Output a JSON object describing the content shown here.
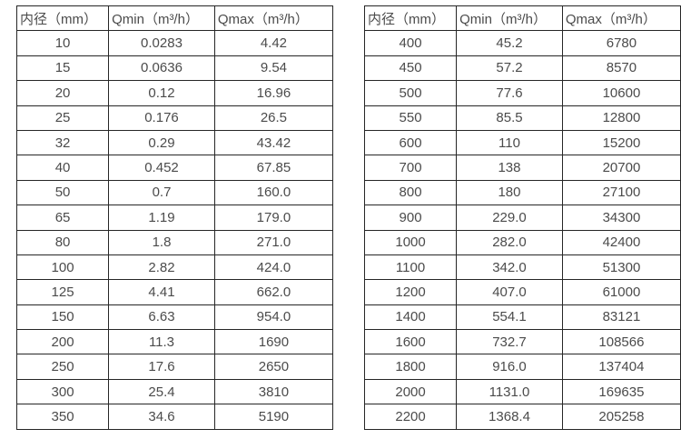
{
  "tables": [
    {
      "name": "flow-table-small-diameters",
      "headers": [
        "内径（mm）",
        "Qmin（m³/h）",
        "Qmax（m³/h）"
      ],
      "rows": [
        [
          "10",
          "0.0283",
          "4.42"
        ],
        [
          "15",
          "0.0636",
          "9.54"
        ],
        [
          "20",
          "0.12",
          "16.96"
        ],
        [
          "25",
          "0.176",
          "26.5"
        ],
        [
          "32",
          "0.29",
          "43.42"
        ],
        [
          "40",
          "0.452",
          "67.85"
        ],
        [
          "50",
          "0.7",
          "160.0"
        ],
        [
          "65",
          "1.19",
          "179.0"
        ],
        [
          "80",
          "1.8",
          "271.0"
        ],
        [
          "100",
          "2.82",
          "424.0"
        ],
        [
          "125",
          "4.41",
          "662.0"
        ],
        [
          "150",
          "6.63",
          "954.0"
        ],
        [
          "200",
          "11.3",
          "1690"
        ],
        [
          "250",
          "17.6",
          "2650"
        ],
        [
          "300",
          "25.4",
          "3810"
        ],
        [
          "350",
          "34.6",
          "5190"
        ]
      ]
    },
    {
      "name": "flow-table-large-diameters",
      "headers": [
        "内径（mm）",
        "Qmin（m³/h）",
        "Qmax（m³/h）"
      ],
      "rows": [
        [
          "400",
          "45.2",
          "6780"
        ],
        [
          "450",
          "57.2",
          "8570"
        ],
        [
          "500",
          "77.6",
          "10600"
        ],
        [
          "550",
          "85.5",
          "12800"
        ],
        [
          "600",
          "110",
          "15200"
        ],
        [
          "700",
          "138",
          "20700"
        ],
        [
          "800",
          "180",
          "27100"
        ],
        [
          "900",
          "229.0",
          "34300"
        ],
        [
          "1000",
          "282.0",
          "42400"
        ],
        [
          "1100",
          "342.0",
          "51300"
        ],
        [
          "1200",
          "407.0",
          "61000"
        ],
        [
          "1400",
          "554.1",
          "83121"
        ],
        [
          "1600",
          "732.7",
          "108566"
        ],
        [
          "1800",
          "916.0",
          "137404"
        ],
        [
          "2000",
          "1131.0",
          "169635"
        ],
        [
          "2200",
          "1368.4",
          "205258"
        ]
      ]
    }
  ],
  "colors": {
    "border": "#262626",
    "text": "#4b4b4b",
    "background": "#ffffff"
  }
}
